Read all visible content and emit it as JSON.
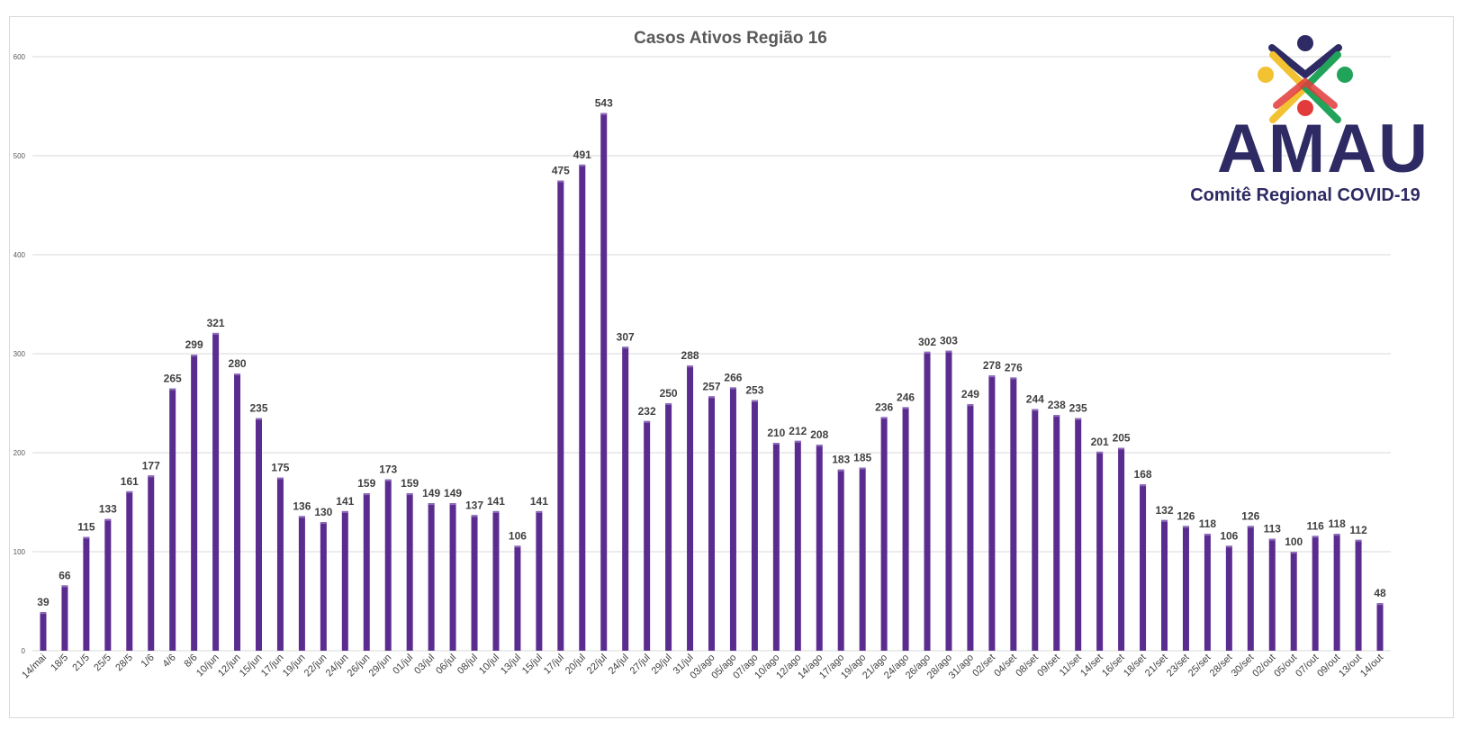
{
  "chart_data": {
    "type": "bar",
    "title": "Casos Ativos Região 16",
    "xlabel": "",
    "ylabel": "",
    "ylim": [
      0,
      600
    ],
    "yticks": [
      0,
      100,
      200,
      300,
      400,
      500,
      600
    ],
    "grid": true,
    "bar_color": "#5b2c8f",
    "categories": [
      "14/mai",
      "18/5",
      "21/5",
      "25/5",
      "28/5",
      "1/6",
      "4/6",
      "8/6",
      "10/jun",
      "12/jun",
      "15/jun",
      "17/jun",
      "19/jun",
      "22/jun",
      "24/jun",
      "26/jun",
      "29/jun",
      "01/jul",
      "03/jul",
      "06/jul",
      "08/jul",
      "10/jul",
      "13/jul",
      "15/jul",
      "17/jul",
      "20/jul",
      "22/jul",
      "24/jul",
      "27/jul",
      "29/jul",
      "31/jul",
      "03/ago",
      "05/ago",
      "07/ago",
      "10/ago",
      "12/ago",
      "14/ago",
      "17/ago",
      "19/ago",
      "21/ago",
      "24/ago",
      "26/ago",
      "28/ago",
      "31/ago",
      "02/set",
      "04/set",
      "08/set",
      "09/set",
      "11/set",
      "14/set",
      "16/set",
      "18/set",
      "21/set",
      "23/set",
      "25/set",
      "28/set",
      "30/set",
      "02/out",
      "05/out",
      "07/out",
      "09/out",
      "13/out",
      "14/out"
    ],
    "values": [
      39,
      66,
      115,
      133,
      161,
      177,
      265,
      299,
      321,
      280,
      235,
      175,
      136,
      130,
      141,
      159,
      173,
      159,
      149,
      149,
      137,
      141,
      106,
      141,
      475,
      491,
      543,
      307,
      232,
      250,
      288,
      257,
      266,
      253,
      210,
      212,
      208,
      183,
      185,
      236,
      246,
      302,
      303,
      249,
      278,
      276,
      244,
      238,
      235,
      201,
      205,
      168,
      132,
      126,
      118,
      106,
      126,
      113,
      100,
      116,
      118,
      112,
      48
    ]
  },
  "logo": {
    "name": "AMAU",
    "subtitle": "Comitê Regional COVID-19",
    "colors": [
      "#2e2a63",
      "#f2c232",
      "#22a35a",
      "#e23b3b"
    ]
  }
}
